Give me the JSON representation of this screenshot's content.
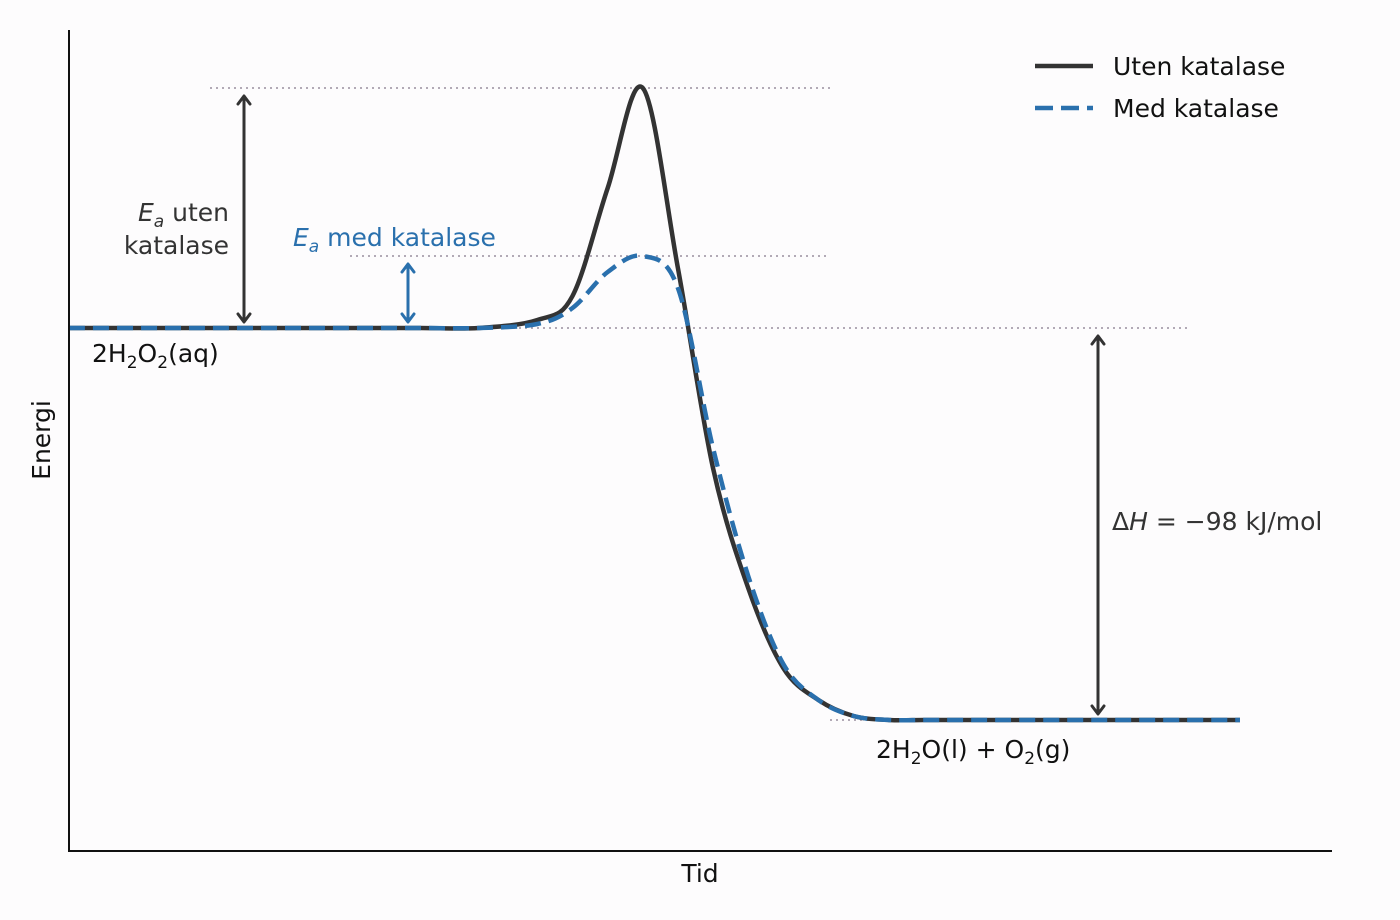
{
  "chart_data": {
    "type": "line",
    "xlabel": "Tid",
    "ylabel": "Energi",
    "x_range": [
      0,
      10
    ],
    "y_range": [
      -110,
      150
    ],
    "grid": false,
    "legend": {
      "placement": "top-right",
      "entries": [
        {
          "label": "Uten katalase",
          "color": "#333333",
          "style": "solid"
        },
        {
          "label": "Med katalase",
          "color": "#2a70ad",
          "style": "dashed"
        }
      ]
    },
    "series": [
      {
        "name": "Uten katalase",
        "color": "#333333",
        "style": "solid",
        "x": [
          0,
          0.5,
          1,
          1.5,
          2,
          2.5,
          3,
          3.5,
          4,
          4.3,
          4.6,
          4.9,
          5.2,
          5.5,
          5.8,
          6.1,
          6.4,
          6.7,
          7,
          7.3,
          7.6,
          8,
          8.5,
          9,
          9.5,
          10
        ],
        "y": [
          0,
          0,
          0,
          0,
          0,
          0,
          0,
          0,
          2,
          8,
          35,
          60,
          15,
          -35,
          -65,
          -85,
          -93,
          -97,
          -98,
          -98,
          -98,
          -98,
          -98,
          -98,
          -98,
          -98
        ]
      },
      {
        "name": "Med katalase",
        "color": "#2a70ad",
        "style": "dashed",
        "x": [
          0,
          0.5,
          1,
          1.5,
          2,
          2.5,
          3,
          3.5,
          4,
          4.3,
          4.6,
          4.9,
          5.2,
          5.5,
          5.8,
          6.1,
          6.4,
          6.7,
          7,
          7.3,
          7.6,
          8,
          8.5,
          9,
          9.5,
          10
        ],
        "y": [
          0,
          0,
          0,
          0,
          0,
          0,
          0,
          0,
          1,
          5,
          14,
          18,
          10,
          -30,
          -62,
          -84,
          -93,
          -97,
          -98,
          -98,
          -98,
          -98,
          -98,
          -98,
          -98,
          -98
        ]
      }
    ],
    "levels": {
      "reactant": 0,
      "product": -98,
      "peak_uncatalyzed": 60,
      "peak_catalyzed": 18
    },
    "annotations": {
      "reactant_label": {
        "pre": "2H",
        "s1": "2",
        "mid": "O",
        "s2": "2",
        "post": "(aq)"
      },
      "product_label": {
        "a": "2H",
        "s1": "2",
        "b": "O(l) + O",
        "s2": "2",
        "c": "(g)"
      },
      "ea_uncat": {
        "symbol": "E",
        "sub": "a",
        "line1_rest": " uten",
        "line2": "katalase"
      },
      "ea_cat": {
        "symbol": "E",
        "sub": "a",
        "rest": " med katalase"
      },
      "delta_h": {
        "delta": "Δ",
        "symbol": "H",
        "rest": " = −98 kJ/mol"
      }
    }
  }
}
